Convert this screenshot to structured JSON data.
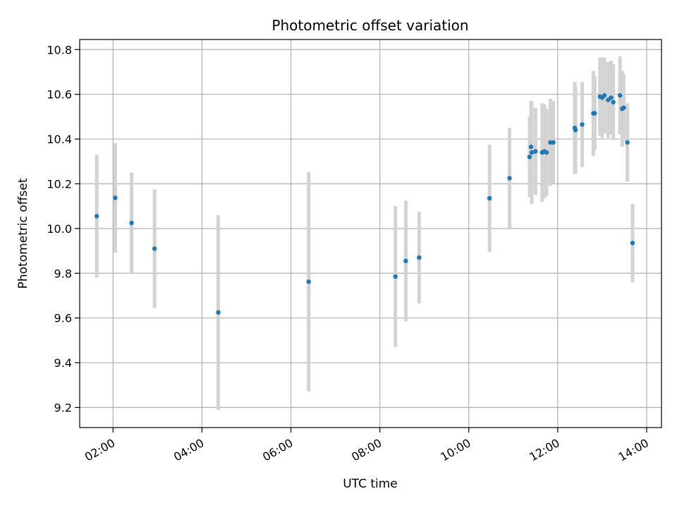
{
  "chart_data": {
    "type": "scatter",
    "title": "Photometric offset variation",
    "xlabel": "UTC time",
    "ylabel": "Photometric offset",
    "xlim": [
      "01:15",
      "14:20"
    ],
    "ylim": [
      9.11,
      10.845
    ],
    "grid": true,
    "point_color": "#1f77b4",
    "errorbar_color": "#d3d3d3",
    "x_ticks": [
      "02:00",
      "04:00",
      "06:00",
      "08:00",
      "10:00",
      "12:00",
      "14:00"
    ],
    "y_ticks": [
      "9.2",
      "9.4",
      "9.6",
      "9.8",
      "10.0",
      "10.2",
      "10.4",
      "10.6",
      "10.8"
    ],
    "points": [
      {
        "time": "01:38",
        "y": 10.055,
        "err": 0.275
      },
      {
        "time": "02:03",
        "y": 10.137,
        "err": 0.245
      },
      {
        "time": "02:25",
        "y": 10.025,
        "err": 0.225
      },
      {
        "time": "02:56",
        "y": 9.91,
        "err": 0.265
      },
      {
        "time": "04:22",
        "y": 9.625,
        "err": 0.435
      },
      {
        "time": "06:24",
        "y": 9.762,
        "err": 0.49
      },
      {
        "time": "08:21",
        "y": 9.785,
        "err": 0.315
      },
      {
        "time": "08:35",
        "y": 9.855,
        "err": 0.27
      },
      {
        "time": "08:53",
        "y": 9.87,
        "err": 0.205
      },
      {
        "time": "10:28",
        "y": 10.135,
        "err": 0.24
      },
      {
        "time": "10:55",
        "y": 10.225,
        "err": 0.225
      },
      {
        "time": "11:22",
        "y": 10.32,
        "err": 0.18
      },
      {
        "time": "11:24",
        "y": 10.365,
        "err": 0.205
      },
      {
        "time": "11:25",
        "y": 10.34,
        "err": 0.23
      },
      {
        "time": "11:30",
        "y": 10.345,
        "err": 0.195
      },
      {
        "time": "11:39",
        "y": 10.34,
        "err": 0.22
      },
      {
        "time": "11:42",
        "y": 10.345,
        "err": 0.21
      },
      {
        "time": "11:45",
        "y": 10.34,
        "err": 0.195
      },
      {
        "time": "11:50",
        "y": 10.385,
        "err": 0.195
      },
      {
        "time": "11:54",
        "y": 10.385,
        "err": 0.185
      },
      {
        "time": "12:23",
        "y": 10.45,
        "err": 0.205
      },
      {
        "time": "12:24",
        "y": 10.44,
        "err": 0.195
      },
      {
        "time": "12:33",
        "y": 10.465,
        "err": 0.19
      },
      {
        "time": "12:48",
        "y": 10.515,
        "err": 0.19
      },
      {
        "time": "12:50",
        "y": 10.515,
        "err": 0.165
      },
      {
        "time": "12:57",
        "y": 10.59,
        "err": 0.175
      },
      {
        "time": "13:00",
        "y": 10.585,
        "err": 0.18
      },
      {
        "time": "13:03",
        "y": 10.595,
        "err": 0.17
      },
      {
        "time": "13:08",
        "y": 10.575,
        "err": 0.17
      },
      {
        "time": "13:12",
        "y": 10.585,
        "err": 0.165
      },
      {
        "time": "13:15",
        "y": 10.565,
        "err": 0.17
      },
      {
        "time": "13:24",
        "y": 10.595,
        "err": 0.175
      },
      {
        "time": "13:27",
        "y": 10.535,
        "err": 0.17
      },
      {
        "time": "13:29",
        "y": 10.54,
        "err": 0.15
      },
      {
        "time": "13:34",
        "y": 10.385,
        "err": 0.175
      },
      {
        "time": "13:41",
        "y": 9.935,
        "err": 0.175
      }
    ]
  }
}
